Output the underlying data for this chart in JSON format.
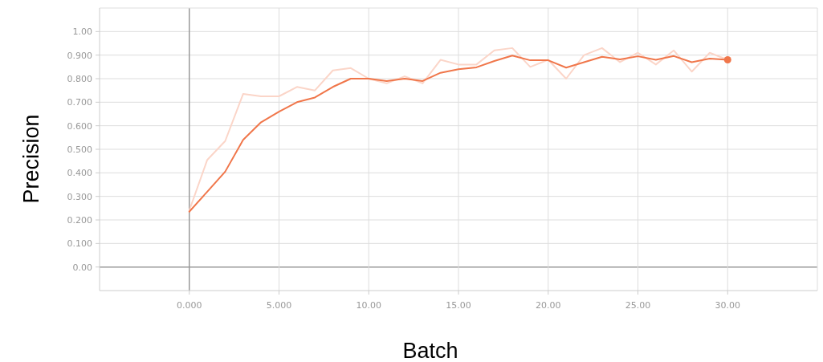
{
  "chart_data": {
    "type": "line",
    "xlabel": "Batch",
    "ylabel": "Precision",
    "xlim": [
      -5,
      35
    ],
    "ylim": [
      -0.1,
      1.1
    ],
    "xticks": [
      {
        "value": 0,
        "label": "0.000"
      },
      {
        "value": 5,
        "label": "5.000"
      },
      {
        "value": 10,
        "label": "10.00"
      },
      {
        "value": 15,
        "label": "15.00"
      },
      {
        "value": 20,
        "label": "20.00"
      },
      {
        "value": 25,
        "label": "25.00"
      },
      {
        "value": 30,
        "label": "30.00"
      }
    ],
    "yticks": [
      {
        "value": 0,
        "label": "0.00"
      },
      {
        "value": 0.1,
        "label": "0.100"
      },
      {
        "value": 0.2,
        "label": "0.200"
      },
      {
        "value": 0.3,
        "label": "0.300"
      },
      {
        "value": 0.4,
        "label": "0.400"
      },
      {
        "value": 0.5,
        "label": "0.500"
      },
      {
        "value": 0.6,
        "label": "0.600"
      },
      {
        "value": 0.7,
        "label": "0.700"
      },
      {
        "value": 0.8,
        "label": "0.800"
      },
      {
        "value": 0.9,
        "label": "0.900"
      },
      {
        "value": 1,
        "label": "1.00"
      }
    ],
    "grid": true,
    "x": [
      0,
      1,
      2,
      3,
      4,
      5,
      6,
      7,
      8,
      9,
      10,
      11,
      12,
      13,
      14,
      15,
      16,
      17,
      18,
      19,
      20,
      21,
      22,
      23,
      24,
      25,
      26,
      27,
      28,
      29,
      30
    ],
    "series": [
      {
        "color": "#fbd5c8",
        "values": [
          0.24,
          0.455,
          0.535,
          0.735,
          0.725,
          0.725,
          0.765,
          0.75,
          0.835,
          0.845,
          0.8,
          0.78,
          0.81,
          0.78,
          0.88,
          0.86,
          0.86,
          0.92,
          0.93,
          0.85,
          0.88,
          0.8,
          0.9,
          0.93,
          0.87,
          0.91,
          0.86,
          0.92,
          0.83,
          0.91,
          0.88
        ]
      },
      {
        "color": "#f0764a",
        "values": [
          0.235,
          0.32,
          0.405,
          0.54,
          0.615,
          0.66,
          0.7,
          0.72,
          0.765,
          0.8,
          0.8,
          0.79,
          0.8,
          0.79,
          0.825,
          0.84,
          0.848,
          0.875,
          0.898,
          0.878,
          0.878,
          0.847,
          0.87,
          0.893,
          0.882,
          0.895,
          0.88,
          0.896,
          0.87,
          0.885,
          0.88
        ]
      },
      {
        "type": "scatter",
        "color": "#f0764a",
        "x": [
          30
        ],
        "values": [
          0.88
        ],
        "marker": "circle"
      }
    ]
  }
}
